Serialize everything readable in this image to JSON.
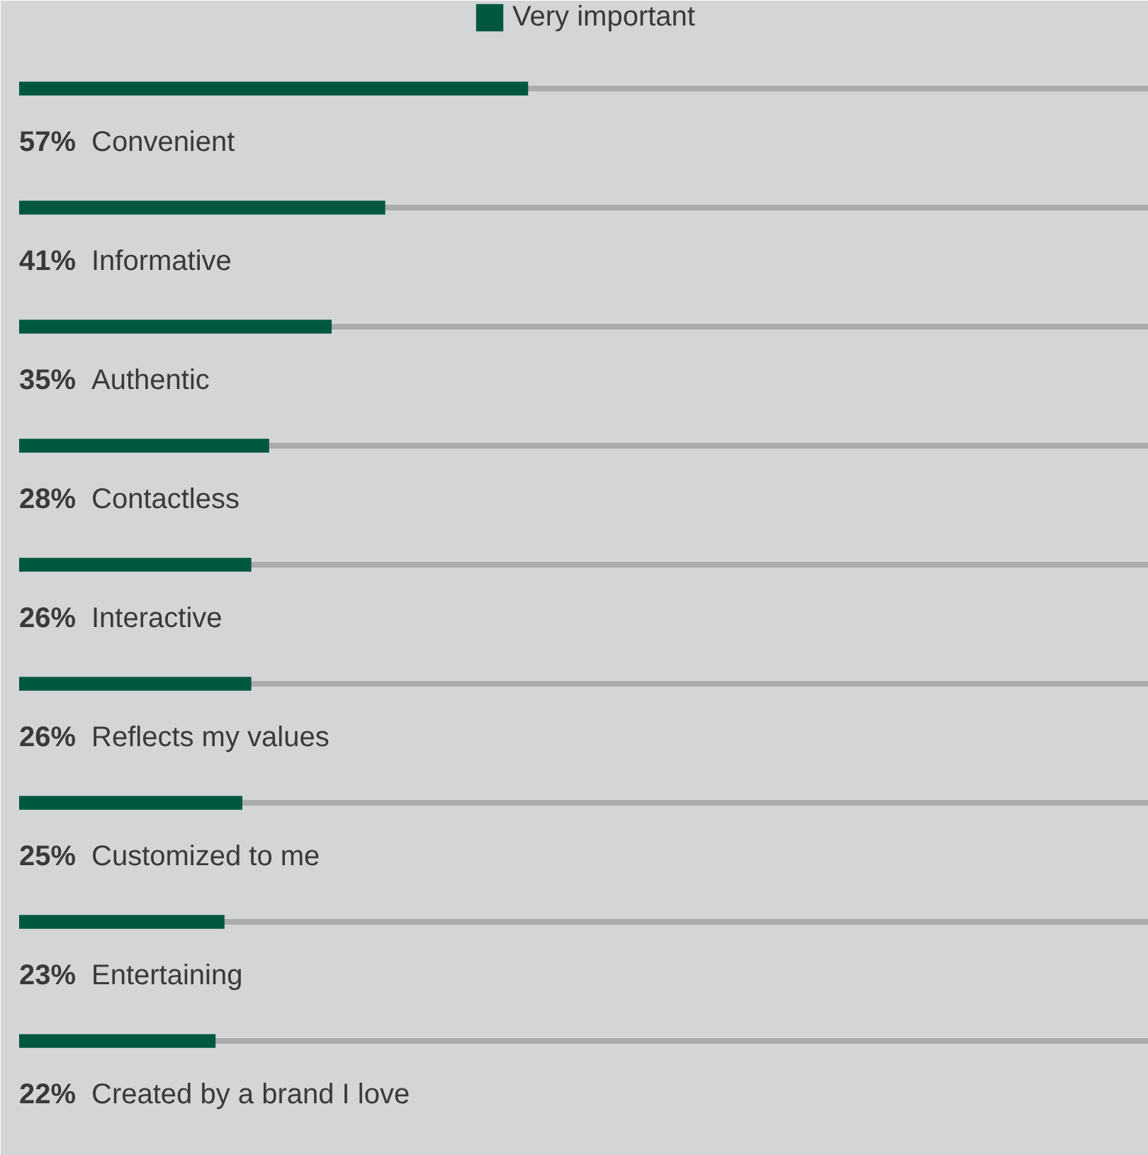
{
  "chart_data": {
    "type": "bar",
    "orientation": "horizontal",
    "categories": [
      "Convenient",
      "Informative",
      "Authentic",
      "Contactless",
      "Interactive",
      "Reflects my values",
      "Customized to me",
      "Entertaining",
      "Created by a brand I love"
    ],
    "series": [
      {
        "name": "Very important",
        "color": "#00573f",
        "values": [
          57,
          41,
          35,
          28,
          26,
          26,
          25,
          23,
          22
        ],
        "value_labels": [
          "57%",
          "41%",
          "35%",
          "28%",
          "26%",
          "26%",
          "25%",
          "23%",
          "22%"
        ]
      }
    ],
    "xlim": [
      0,
      126.5
    ],
    "grid": "y",
    "legend": "top",
    "tick_labels": "y"
  }
}
